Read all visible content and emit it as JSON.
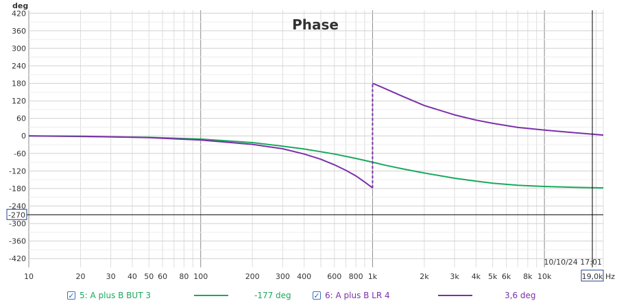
{
  "chart_data": {
    "type": "line",
    "title": "Phase",
    "ylabel": "deg",
    "xunit": "Hz",
    "xscale": "log",
    "xlim": [
      10,
      22000
    ],
    "ylim": [
      -450,
      430
    ],
    "x_ticks": [
      {
        "value": 10,
        "label": "10"
      },
      {
        "value": 20,
        "label": "20"
      },
      {
        "value": 30,
        "label": "30"
      },
      {
        "value": 40,
        "label": "40"
      },
      {
        "value": 50,
        "label": "50"
      },
      {
        "value": 60,
        "label": "60"
      },
      {
        "value": 80,
        "label": "80"
      },
      {
        "value": 100,
        "label": "100"
      },
      {
        "value": 200,
        "label": "200"
      },
      {
        "value": 300,
        "label": "300"
      },
      {
        "value": 400,
        "label": "400"
      },
      {
        "value": 600,
        "label": "600"
      },
      {
        "value": 800,
        "label": "800"
      },
      {
        "value": 1000,
        "label": "1k"
      },
      {
        "value": 2000,
        "label": "2k"
      },
      {
        "value": 3000,
        "label": "3k"
      },
      {
        "value": 4000,
        "label": "4k"
      },
      {
        "value": 5000,
        "label": "5k"
      },
      {
        "value": 6000,
        "label": "6k"
      },
      {
        "value": 8000,
        "label": "8k"
      },
      {
        "value": 10000,
        "label": "10k"
      }
    ],
    "y_ticks": [
      {
        "value": 420,
        "label": "420"
      },
      {
        "value": 360,
        "label": "360"
      },
      {
        "value": 300,
        "label": "300"
      },
      {
        "value": 240,
        "label": "240"
      },
      {
        "value": 180,
        "label": "180"
      },
      {
        "value": 120,
        "label": "120"
      },
      {
        "value": 60,
        "label": "60"
      },
      {
        "value": 0,
        "label": "0"
      },
      {
        "value": -60,
        "label": "-60"
      },
      {
        "value": -120,
        "label": "-120"
      },
      {
        "value": -180,
        "label": "-180"
      },
      {
        "value": -240,
        "label": "-240"
      },
      {
        "value": -300,
        "label": "-300"
      },
      {
        "value": -360,
        "label": "-360"
      },
      {
        "value": -420,
        "label": "-420"
      }
    ],
    "cursor": {
      "x": 19000,
      "x_label": "19,0k",
      "y": -270,
      "y_label": "-270"
    },
    "timestamp": "10/10/24 17:01",
    "series": [
      {
        "name": "5: A plus B BUT 3",
        "color": "#1aa85c",
        "cursor_value": "-177 deg",
        "checked": true,
        "x": [
          10,
          20,
          50,
          100,
          200,
          300,
          400,
          500,
          600,
          700,
          800,
          900,
          1000,
          1200,
          1500,
          2000,
          3000,
          4000,
          5000,
          7000,
          10000,
          15000,
          22000
        ],
        "y": [
          0,
          -2,
          -5,
          -11,
          -23,
          -35,
          -45,
          -54,
          -62,
          -70,
          -77,
          -84,
          -90,
          -101,
          -113,
          -127,
          -145,
          -155,
          -162,
          -169,
          -173,
          -176,
          -178
        ]
      },
      {
        "name": "6: A plus B LR 4",
        "color": "#7b2fa8",
        "cursor_value": "3,6 deg",
        "checked": true,
        "x": [
          10,
          20,
          50,
          100,
          200,
          300,
          400,
          500,
          600,
          700,
          800,
          900,
          1000,
          1000,
          1100,
          1500,
          2000,
          3000,
          4000,
          5000,
          7000,
          10000,
          15000,
          22000
        ],
        "y": [
          0,
          -1,
          -6,
          -14,
          -29,
          -44,
          -62,
          -80,
          -99,
          -118,
          -137,
          -158,
          -178,
          180,
          170,
          135,
          104,
          72,
          54,
          43,
          29,
          20,
          11,
          3
        ]
      }
    ]
  }
}
